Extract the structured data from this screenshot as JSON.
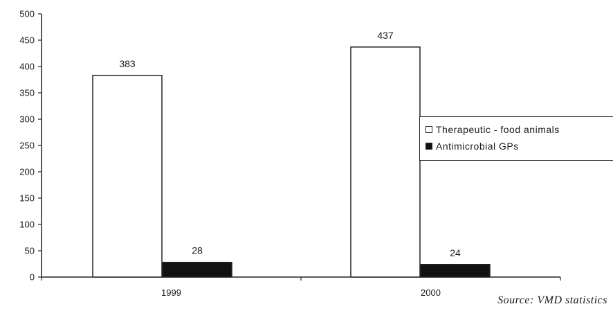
{
  "chart_data": {
    "type": "bar",
    "categories": [
      "1999",
      "2000"
    ],
    "series": [
      {
        "name": "Therapeutic - food animals",
        "values": [
          383,
          437
        ],
        "color": "#ffffff"
      },
      {
        "name": "Antimicrobial GPs",
        "values": [
          28,
          24
        ],
        "color": "#111111"
      }
    ],
    "ylim": [
      0,
      500
    ],
    "yticks": [
      "0",
      "50",
      "100",
      "150",
      "200",
      "250",
      "300",
      "350",
      "400",
      "450",
      "500"
    ],
    "grid": false,
    "legend_position": "right"
  },
  "source": "Source: VMD statistics"
}
